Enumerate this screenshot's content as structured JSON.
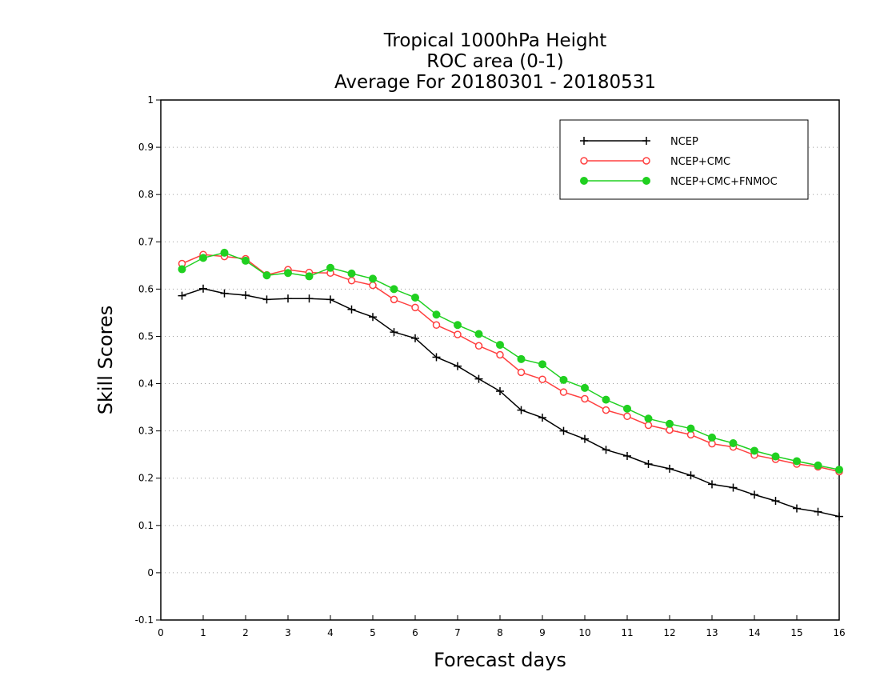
{
  "chart_data": {
    "type": "line",
    "title": [
      "Tropical 1000hPa Height",
      "ROC area (0-1)",
      "Average For 20180301 - 20180531"
    ],
    "xlabel": "Forecast days",
    "ylabel": "Skill Scores",
    "xlim": [
      0,
      16
    ],
    "ylim": [
      -0.1,
      1
    ],
    "x_ticks": [
      0,
      1,
      2,
      3,
      4,
      5,
      6,
      7,
      8,
      9,
      10,
      11,
      12,
      13,
      14,
      15,
      16
    ],
    "x_tick_labels": [
      "0",
      "1",
      "2",
      "3",
      "4",
      "5",
      "6",
      "7",
      "8",
      "9",
      "10",
      "11",
      "12",
      "13",
      "14",
      "15",
      "16"
    ],
    "y_ticks": [
      -0.1,
      0,
      0.1,
      0.2,
      0.3,
      0.4,
      0.5,
      0.6,
      0.7,
      0.8,
      0.9,
      1
    ],
    "y_tick_labels": [
      "-0.1",
      "0",
      "0.1",
      "0.2",
      "0.3",
      "0.4",
      "0.5",
      "0.6",
      "0.7",
      "0.8",
      "0.9",
      "1"
    ],
    "grid": true,
    "legend_position": "top-right",
    "x": [
      0.5,
      1,
      1.5,
      2,
      2.5,
      3,
      3.5,
      4,
      4.5,
      5,
      5.5,
      6,
      6.5,
      7,
      7.5,
      8,
      8.5,
      9,
      9.5,
      10,
      10.5,
      11,
      11.5,
      12,
      12.5,
      13,
      13.5,
      14,
      14.5,
      15,
      15.5,
      16
    ],
    "series": [
      {
        "name": "NCEP",
        "color": "#000000",
        "marker": "plus",
        "values": [
          0.586,
          0.601,
          0.591,
          0.587,
          0.578,
          0.58,
          0.58,
          0.578,
          0.557,
          0.541,
          0.509,
          0.496,
          0.456,
          0.437,
          0.41,
          0.384,
          0.344,
          0.328,
          0.3,
          0.283,
          0.26,
          0.247,
          0.23,
          0.22,
          0.206,
          0.187,
          0.18,
          0.165,
          0.152,
          0.136,
          0.129,
          0.119
        ]
      },
      {
        "name": "NCEP+CMC",
        "color": "#ff4040",
        "marker": "open-circle",
        "values": [
          0.654,
          0.673,
          0.669,
          0.664,
          0.63,
          0.641,
          0.635,
          0.634,
          0.618,
          0.608,
          0.578,
          0.561,
          0.524,
          0.504,
          0.48,
          0.461,
          0.424,
          0.409,
          0.382,
          0.368,
          0.344,
          0.331,
          0.312,
          0.302,
          0.292,
          0.273,
          0.266,
          0.249,
          0.24,
          0.23,
          0.224,
          0.214
        ]
      },
      {
        "name": "NCEP+CMC+FNMOC",
        "color": "#20d020",
        "marker": "filled-circle",
        "values": [
          0.642,
          0.666,
          0.677,
          0.66,
          0.629,
          0.634,
          0.627,
          0.645,
          0.633,
          0.622,
          0.6,
          0.582,
          0.546,
          0.524,
          0.505,
          0.482,
          0.452,
          0.441,
          0.408,
          0.391,
          0.366,
          0.347,
          0.326,
          0.315,
          0.305,
          0.286,
          0.274,
          0.258,
          0.246,
          0.236,
          0.227,
          0.218
        ]
      }
    ]
  }
}
